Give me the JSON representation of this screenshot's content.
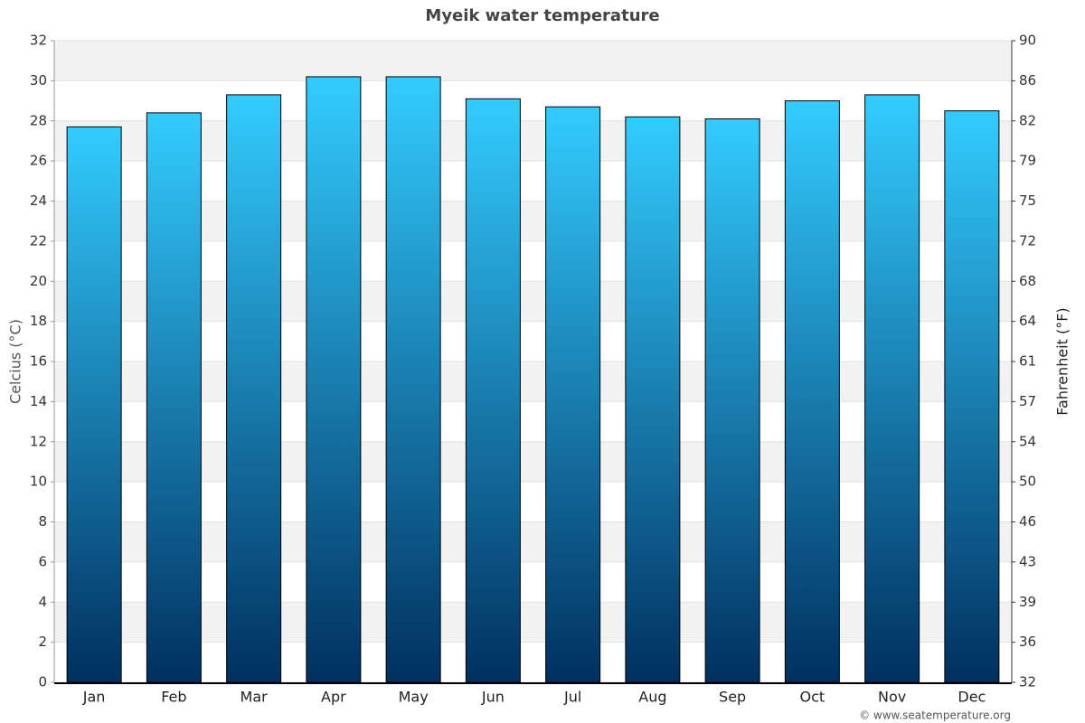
{
  "chart_data": {
    "type": "bar",
    "title": "Myeik water temperature",
    "categories": [
      "Jan",
      "Feb",
      "Mar",
      "Apr",
      "May",
      "Jun",
      "Jul",
      "Aug",
      "Sep",
      "Oct",
      "Nov",
      "Dec"
    ],
    "values": [
      27.7,
      28.4,
      29.3,
      30.2,
      30.2,
      29.1,
      28.7,
      28.2,
      28.1,
      29.0,
      29.3,
      28.5
    ],
    "gradient": [
      "#33ccff",
      "#00305f"
    ],
    "ylabel": "Celcius (°C)",
    "ylim": [
      0,
      32
    ],
    "yticks": [
      0,
      2,
      4,
      6,
      8,
      10,
      12,
      14,
      16,
      18,
      20,
      22,
      24,
      26,
      28,
      30,
      32
    ],
    "y2label": "Fahrenheit (°F)",
    "y2lim": [
      32,
      89.6
    ],
    "y2ticks": [
      32,
      {
        "value": 35.6,
        "label": "36"
      },
      {
        "value": 39.2,
        "label": "39"
      },
      {
        "value": 42.8,
        "label": "43"
      },
      {
        "value": 46.4,
        "label": "46"
      },
      50,
      {
        "value": 53.6,
        "label": "54"
      },
      {
        "value": 57.2,
        "label": "57"
      },
      {
        "value": 60.8,
        "label": "61"
      },
      {
        "value": 64.4,
        "label": "64"
      },
      68,
      {
        "value": 71.6,
        "label": "72"
      },
      {
        "value": 75.2,
        "label": "75"
      },
      {
        "value": 78.8,
        "label": "79"
      },
      {
        "value": 82.4,
        "label": "82"
      },
      86,
      {
        "value": 89.6,
        "label": "90"
      }
    ],
    "grid": true,
    "credit": "© www.seatemperature.org"
  }
}
